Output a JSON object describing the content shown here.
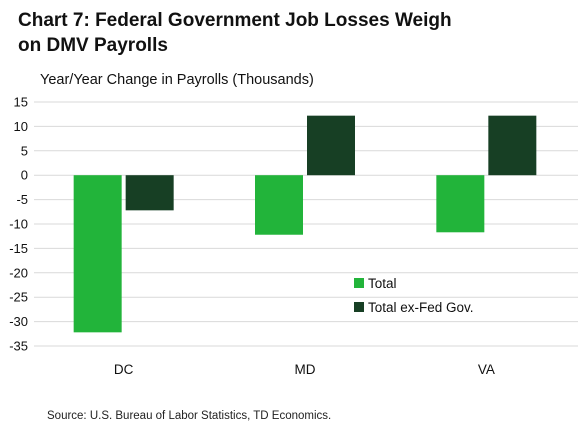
{
  "title_line1": "Chart 7: Federal Government Job Losses Weigh",
  "title_line2": "on DMV Payrolls",
  "source": "Source: U.S. Bureau of Labor Statistics, TD Economics.",
  "colors": {
    "total": "#22b43a",
    "ex_fed": "#173f24",
    "grid": "#d9d9d9"
  },
  "chart_data": {
    "type": "bar",
    "title": "Chart 7: Federal Government Job Losses Weigh on DMV Payrolls",
    "ylabel": "Year/Year Change in Payrolls (Thousands)",
    "xlabel": "",
    "categories": [
      "DC",
      "MD",
      "VA"
    ],
    "series": [
      {
        "name": "Total",
        "values": [
          -32.2,
          -12.2,
          -11.7
        ]
      },
      {
        "name": "Total ex-Fed Gov.",
        "values": [
          -7.2,
          12.2,
          12.2
        ]
      }
    ],
    "ylim": [
      -35,
      15
    ],
    "yticks": [
      15,
      10,
      5,
      0,
      -5,
      -10,
      -15,
      -20,
      -25,
      -30,
      -35
    ],
    "grid": true,
    "legend": "lower-right"
  }
}
